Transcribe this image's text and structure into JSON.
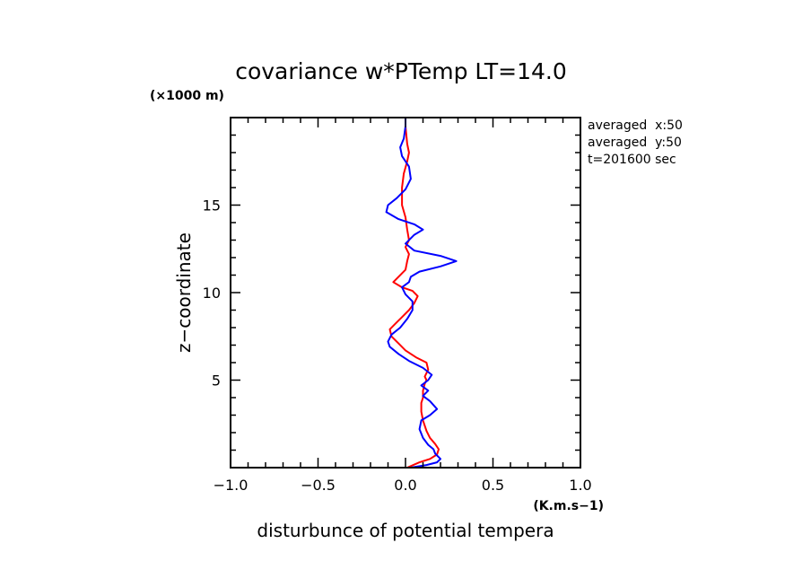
{
  "chart_data": {
    "type": "line",
    "title": "covariance w*PTemp LT=14.0",
    "xlabel": "disturbunce of potential tempera",
    "x_units": "(K.m.s−1)",
    "ylabel": "z−coordinate",
    "y_units": "(×1000 m)",
    "xlim": [
      -1.0,
      1.0
    ],
    "ylim": [
      0,
      20
    ],
    "x_ticks": [
      -1.0,
      -0.5,
      0.0,
      0.5,
      1.0
    ],
    "x_tick_labels": [
      "−1.0",
      "−0.5",
      "0.0",
      "0.5",
      "1.0"
    ],
    "y_ticks": [
      5,
      10,
      15
    ],
    "y_tick_labels": [
      "5",
      "10",
      "15"
    ],
    "annotations": [
      "averaged  x:50",
      "averaged  y:50",
      "t=201600 sec"
    ],
    "colors": {
      "red": "#ff0000",
      "blue": "#0000ff"
    },
    "series": [
      {
        "color": "#ff0000",
        "points": [
          [
            0.01,
            0.0
          ],
          [
            0.08,
            0.3
          ],
          [
            0.14,
            0.5
          ],
          [
            0.18,
            0.75
          ],
          [
            0.19,
            1.05
          ],
          [
            0.17,
            1.35
          ],
          [
            0.14,
            1.7
          ],
          [
            0.12,
            2.1
          ],
          [
            0.1,
            2.7
          ],
          [
            0.09,
            3.2
          ],
          [
            0.09,
            3.7
          ],
          [
            0.1,
            4.0
          ],
          [
            0.1,
            4.4
          ],
          [
            0.11,
            4.8
          ],
          [
            0.12,
            5.0
          ],
          [
            0.11,
            5.2
          ],
          [
            0.13,
            5.6
          ],
          [
            0.12,
            6.0
          ],
          [
            0.06,
            6.3
          ],
          [
            0.0,
            6.7
          ],
          [
            -0.04,
            7.1
          ],
          [
            -0.08,
            7.5
          ],
          [
            -0.09,
            7.9
          ],
          [
            -0.06,
            8.2
          ],
          [
            -0.02,
            8.6
          ],
          [
            0.02,
            9.0
          ],
          [
            0.05,
            9.4
          ],
          [
            0.07,
            9.8
          ],
          [
            0.04,
            10.1
          ],
          [
            -0.02,
            10.3
          ],
          [
            -0.07,
            10.6
          ],
          [
            -0.04,
            10.9
          ],
          [
            0.0,
            11.3
          ],
          [
            0.01,
            11.8
          ],
          [
            0.02,
            12.2
          ],
          [
            0.0,
            12.6
          ],
          [
            0.02,
            13.0
          ],
          [
            0.01,
            13.6
          ],
          [
            0.0,
            14.3
          ],
          [
            -0.02,
            15.0
          ],
          [
            -0.02,
            16.0
          ],
          [
            -0.01,
            16.8
          ],
          [
            0.01,
            17.5
          ],
          [
            0.02,
            18.0
          ],
          [
            0.01,
            18.5
          ],
          [
            0.0,
            19.5
          ],
          [
            0.0,
            20.0
          ]
        ]
      },
      {
        "color": "#0000ff",
        "points": [
          [
            0.03,
            0.0
          ],
          [
            0.12,
            0.15
          ],
          [
            0.18,
            0.3
          ],
          [
            0.2,
            0.5
          ],
          [
            0.17,
            0.8
          ],
          [
            0.16,
            1.05
          ],
          [
            0.13,
            1.3
          ],
          [
            0.1,
            1.7
          ],
          [
            0.08,
            2.2
          ],
          [
            0.09,
            2.7
          ],
          [
            0.14,
            3.0
          ],
          [
            0.18,
            3.35
          ],
          [
            0.14,
            3.8
          ],
          [
            0.1,
            4.1
          ],
          [
            0.13,
            4.4
          ],
          [
            0.09,
            4.7
          ],
          [
            0.13,
            5.0
          ],
          [
            0.15,
            5.3
          ],
          [
            0.1,
            5.7
          ],
          [
            0.02,
            6.1
          ],
          [
            -0.04,
            6.5
          ],
          [
            -0.09,
            6.9
          ],
          [
            -0.1,
            7.2
          ],
          [
            -0.08,
            7.6
          ],
          [
            -0.03,
            8.0
          ],
          [
            0.01,
            8.5
          ],
          [
            0.04,
            9.0
          ],
          [
            0.04,
            9.5
          ],
          [
            0.0,
            9.9
          ],
          [
            -0.02,
            10.3
          ],
          [
            0.02,
            10.6
          ],
          [
            0.03,
            10.9
          ],
          [
            0.08,
            11.2
          ],
          [
            0.2,
            11.5
          ],
          [
            0.29,
            11.8
          ],
          [
            0.2,
            12.1
          ],
          [
            0.05,
            12.4
          ],
          [
            0.0,
            12.8
          ],
          [
            0.05,
            13.3
          ],
          [
            0.1,
            13.6
          ],
          [
            0.05,
            13.9
          ],
          [
            -0.04,
            14.2
          ],
          [
            -0.11,
            14.6
          ],
          [
            -0.1,
            15.0
          ],
          [
            -0.05,
            15.4
          ],
          [
            0.0,
            15.9
          ],
          [
            0.03,
            16.5
          ],
          [
            0.02,
            17.2
          ],
          [
            -0.02,
            17.8
          ],
          [
            -0.03,
            18.3
          ],
          [
            -0.01,
            18.8
          ],
          [
            0.0,
            19.5
          ],
          [
            0.0,
            20.0
          ]
        ]
      }
    ]
  }
}
